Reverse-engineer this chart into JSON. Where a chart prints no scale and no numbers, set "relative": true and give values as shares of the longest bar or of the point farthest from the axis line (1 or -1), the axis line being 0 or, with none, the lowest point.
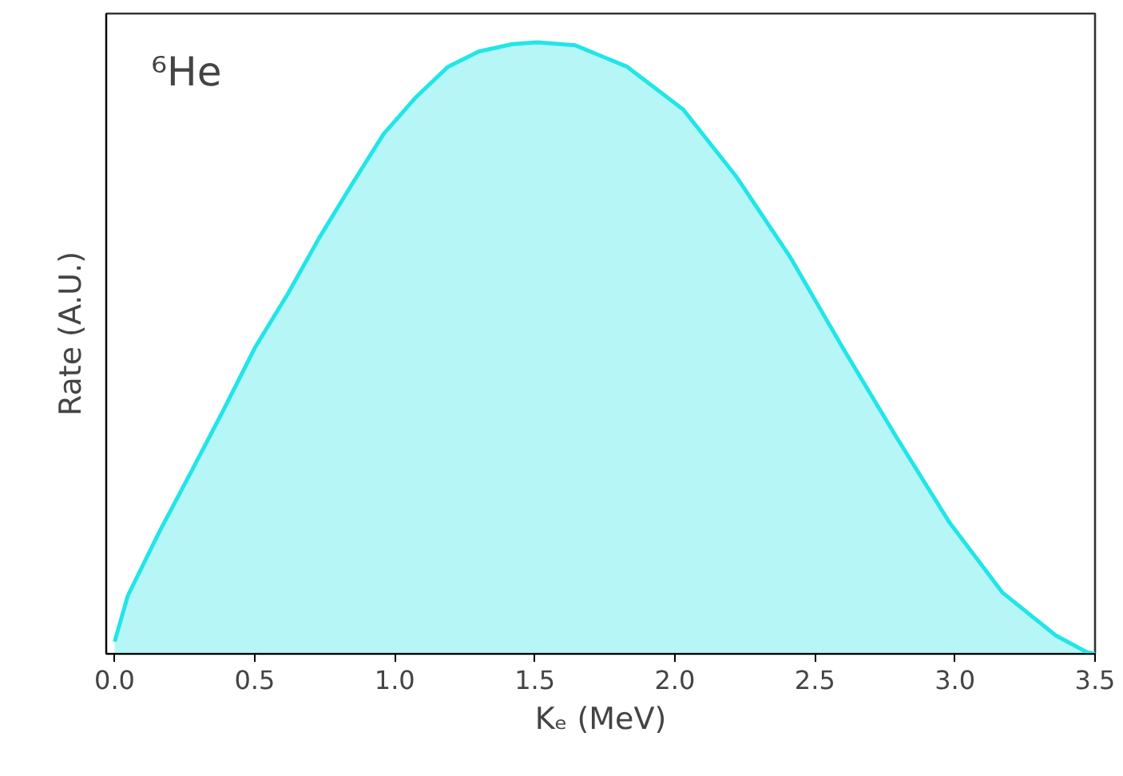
{
  "chart_data": {
    "type": "area",
    "relative": true,
    "xlabel": "Kₑ (MeV)",
    "ylabel": "Rate (A.U.)",
    "annotations": [
      "⁶He"
    ],
    "xlim": [
      -0.03,
      3.5
    ],
    "xticks": [
      {
        "value": 0,
        "label": "0.0"
      },
      {
        "value": 0.5,
        "label": "0.5"
      },
      {
        "value": 1,
        "label": "1.0"
      },
      {
        "value": 1.5,
        "label": "1.5"
      },
      {
        "value": 2,
        "label": "2.0"
      },
      {
        "value": 2.5,
        "label": "2.5"
      },
      {
        "value": 3,
        "label": "3.0"
      },
      {
        "value": 3.5,
        "label": "3.5"
      }
    ],
    "tick_labels": "x",
    "grid": false,
    "series": [
      {
        "color": "#22e5e8",
        "x": [
          0,
          0.047,
          0.16,
          0.276,
          0.39,
          0.5,
          0.62,
          0.73,
          0.85,
          0.96,
          1.075,
          1.19,
          1.3,
          1.42,
          1.51,
          1.645,
          1.83,
          2.03,
          2.22,
          2.41,
          2.6,
          2.79,
          2.98,
          3.17,
          3.36,
          3.47,
          3.5
        ],
        "values": [
          0.02,
          0.095,
          0.2,
          0.3,
          0.4,
          0.5,
          0.59,
          0.68,
          0.77,
          0.85,
          0.91,
          0.96,
          0.985,
          0.997,
          1.0,
          0.995,
          0.96,
          0.89,
          0.78,
          0.65,
          0.5,
          0.355,
          0.215,
          0.1,
          0.03,
          0.003,
          0
        ]
      }
    ]
  }
}
